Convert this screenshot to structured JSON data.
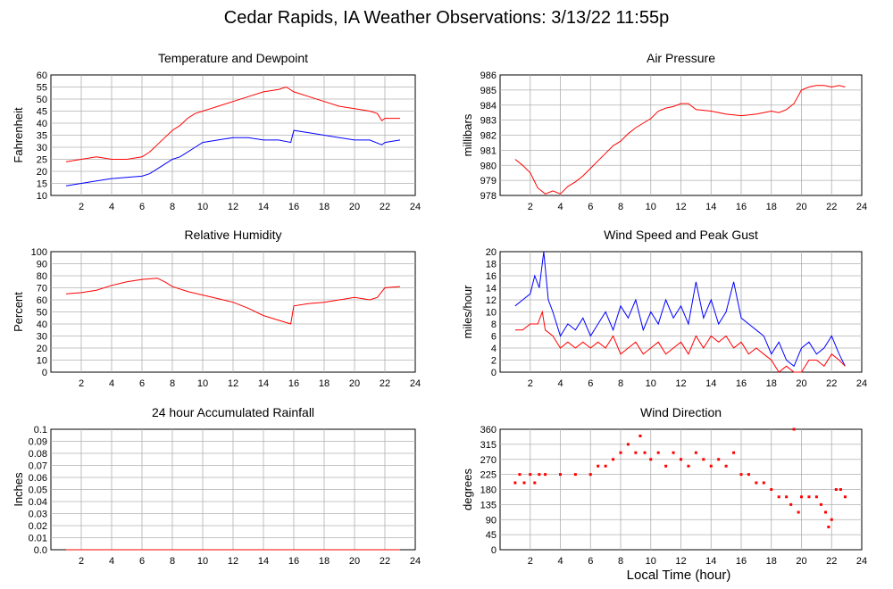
{
  "title": "Cedar Rapids, IA Weather Observations: 3/13/22 11:55p",
  "x_axis_label": "Local Time (hour)",
  "chart_data": [
    {
      "id": "temp",
      "type": "line",
      "title": "Temperature and Dewpoint",
      "ylabel": "Fahrenheit",
      "xlim": [
        0,
        24
      ],
      "ylim": [
        10,
        60
      ],
      "xticks": [
        2,
        4,
        6,
        8,
        10,
        12,
        14,
        16,
        18,
        20,
        22,
        24
      ],
      "yticks": [
        10,
        15,
        20,
        25,
        30,
        35,
        40,
        45,
        50,
        55,
        60
      ],
      "grid": true,
      "series": [
        {
          "color": "#ff0000",
          "x": [
            1,
            2,
            3,
            4,
            5,
            6,
            6.5,
            7,
            7.5,
            8,
            8.5,
            9,
            9.5,
            10,
            10.5,
            11,
            12,
            13,
            14,
            15,
            15.5,
            16,
            17,
            18,
            19,
            20,
            21,
            21.5,
            21.8,
            22,
            22.5,
            23
          ],
          "y": [
            24,
            25,
            26,
            25,
            25,
            26,
            28,
            31,
            34,
            37,
            39,
            42,
            44,
            45,
            46,
            47,
            49,
            51,
            53,
            54,
            55,
            53,
            51,
            49,
            47,
            46,
            45,
            44,
            41,
            42,
            42,
            42
          ]
        },
        {
          "color": "#0000ff",
          "x": [
            1,
            2,
            3,
            4,
            5,
            6,
            6.5,
            7,
            7.5,
            8,
            8.5,
            9,
            9.5,
            10,
            11,
            12,
            13,
            14,
            15,
            15.8,
            16,
            17,
            18,
            19,
            20,
            21,
            21.8,
            22,
            23
          ],
          "y": [
            14,
            15,
            16,
            17,
            17.5,
            18,
            19,
            21,
            23,
            25,
            26,
            28,
            30,
            32,
            33,
            34,
            34,
            33,
            33,
            32,
            37,
            36,
            35,
            34,
            33,
            33,
            31,
            32,
            33
          ]
        }
      ]
    },
    {
      "id": "press",
      "type": "line",
      "title": "Air Pressure",
      "ylabel": "millibars",
      "xlim": [
        0,
        24
      ],
      "ylim": [
        978,
        986
      ],
      "xticks": [
        2,
        4,
        6,
        8,
        10,
        12,
        14,
        16,
        18,
        20,
        22,
        24
      ],
      "yticks": [
        978,
        979,
        980,
        981,
        982,
        983,
        984,
        985,
        986
      ],
      "grid": true,
      "series": [
        {
          "color": "#ff0000",
          "x": [
            1,
            1.5,
            2,
            2.5,
            3,
            3.5,
            4,
            4.5,
            5,
            5.5,
            6,
            6.5,
            7,
            7.5,
            8,
            8.5,
            9,
            9.5,
            10,
            10.5,
            11,
            11.5,
            12,
            12.5,
            13,
            14,
            15,
            16,
            17,
            18,
            18.5,
            19,
            19.5,
            20,
            20.5,
            21,
            21.5,
            22,
            22.5,
            22.9
          ],
          "y": [
            980.4,
            980,
            979.5,
            978.5,
            978.1,
            978.3,
            978.1,
            978.6,
            978.9,
            979.3,
            979.8,
            980.3,
            980.8,
            981.3,
            981.6,
            982.1,
            982.5,
            982.8,
            983.1,
            983.6,
            983.8,
            983.9,
            984.1,
            984.1,
            983.7,
            983.6,
            983.4,
            983.3,
            983.4,
            983.6,
            983.5,
            983.7,
            984.1,
            985,
            985.2,
            985.3,
            985.3,
            985.2,
            985.3,
            985.2
          ]
        }
      ]
    },
    {
      "id": "rh",
      "type": "line",
      "title": "Relative Humidity",
      "ylabel": "Percent",
      "xlim": [
        0,
        24
      ],
      "ylim": [
        0,
        100
      ],
      "xticks": [
        2,
        4,
        6,
        8,
        10,
        12,
        14,
        16,
        18,
        20,
        22,
        24
      ],
      "yticks": [
        0,
        10,
        20,
        30,
        40,
        50,
        60,
        70,
        80,
        90,
        100
      ],
      "grid": true,
      "series": [
        {
          "color": "#ff0000",
          "x": [
            1,
            2,
            3,
            4,
            5,
            6,
            7,
            7.5,
            8,
            9,
            10,
            11,
            12,
            13,
            14,
            15,
            15.8,
            16,
            17,
            18,
            19,
            20,
            21,
            21.5,
            22,
            23
          ],
          "y": [
            65,
            66,
            68,
            72,
            75,
            77,
            78,
            75,
            71,
            67,
            64,
            61,
            58,
            53,
            47,
            43,
            40,
            55,
            57,
            58,
            60,
            62,
            60,
            62,
            70,
            71
          ]
        }
      ]
    },
    {
      "id": "wind",
      "type": "line",
      "title": "Wind Speed and Peak Gust",
      "ylabel": "miles/hour",
      "xlim": [
        0,
        24
      ],
      "ylim": [
        0,
        20
      ],
      "xticks": [
        2,
        4,
        6,
        8,
        10,
        12,
        14,
        16,
        18,
        20,
        22,
        24
      ],
      "yticks": [
        0,
        2,
        4,
        6,
        8,
        10,
        12,
        14,
        16,
        18,
        20
      ],
      "grid": true,
      "series": [
        {
          "color": "#0000ff",
          "x": [
            1,
            1.5,
            2,
            2.3,
            2.6,
            2.9,
            3.2,
            3.5,
            4,
            4.5,
            5,
            5.5,
            6,
            6.5,
            7,
            7.5,
            8,
            8.5,
            9,
            9.5,
            10,
            10.5,
            11,
            11.5,
            12,
            12.5,
            13,
            13.5,
            14,
            14.5,
            15,
            15.5,
            16,
            16.5,
            17,
            17.5,
            18,
            18.5,
            19,
            19.5,
            20,
            20.5,
            21,
            21.5,
            22,
            22.5,
            22.9
          ],
          "y": [
            11,
            12,
            13,
            16,
            14,
            20,
            12,
            10,
            6,
            8,
            7,
            9,
            6,
            8,
            10,
            7,
            11,
            9,
            12,
            7,
            10,
            8,
            12,
            9,
            11,
            8,
            15,
            9,
            12,
            8,
            10,
            15,
            9,
            8,
            7,
            6,
            3,
            5,
            2,
            1,
            4,
            5,
            3,
            4,
            6,
            3,
            1
          ]
        },
        {
          "color": "#ff0000",
          "x": [
            1,
            1.5,
            2,
            2.5,
            2.8,
            3,
            3.5,
            4,
            4.5,
            5,
            5.5,
            6,
            6.5,
            7,
            7.5,
            8,
            8.5,
            9,
            9.5,
            10,
            10.5,
            11,
            11.5,
            12,
            12.5,
            13,
            13.5,
            14,
            14.5,
            15,
            15.5,
            16,
            16.5,
            17,
            17.5,
            18,
            18.5,
            19,
            19.5,
            20,
            20.5,
            21,
            21.5,
            22,
            22.5,
            22.9
          ],
          "y": [
            7,
            7,
            8,
            8,
            10,
            7,
            6,
            4,
            5,
            4,
            5,
            4,
            5,
            4,
            6,
            3,
            4,
            5,
            3,
            4,
            5,
            3,
            4,
            5,
            3,
            6,
            4,
            6,
            5,
            6,
            4,
            5,
            3,
            4,
            3,
            2,
            0,
            1,
            0,
            0,
            2,
            2,
            1,
            3,
            2,
            1
          ]
        }
      ]
    },
    {
      "id": "rain",
      "type": "line",
      "title": "24 hour Accumulated Rainfall",
      "ylabel": "Inches",
      "xlim": [
        0,
        24
      ],
      "ylim": [
        0,
        0.1
      ],
      "xticks": [
        2,
        4,
        6,
        8,
        10,
        12,
        14,
        16,
        18,
        20,
        22,
        24
      ],
      "yticks": [
        0,
        0.01,
        0.02,
        0.03,
        0.04,
        0.05,
        0.06,
        0.07,
        0.08,
        0.09,
        0.1
      ],
      "ytick_labels": [
        "0.0",
        "0.01",
        "0.02",
        "0.03",
        "0.04",
        "0.05",
        "0.06",
        "0.07",
        "0.08",
        "0.09",
        "0.1"
      ],
      "grid": true,
      "series": [
        {
          "color": "#ff0000",
          "x": [
            1,
            23
          ],
          "y": [
            0,
            0
          ]
        }
      ]
    },
    {
      "id": "wdir",
      "type": "scatter",
      "title": "Wind Direction",
      "ylabel": "degrees",
      "xlim": [
        0,
        24
      ],
      "ylim": [
        0,
        360
      ],
      "xticks": [
        2,
        4,
        6,
        8,
        10,
        12,
        14,
        16,
        18,
        20,
        22,
        24
      ],
      "yticks": [
        0,
        45,
        90,
        135,
        180,
        225,
        270,
        315,
        360
      ],
      "grid": true,
      "series": [
        {
          "color": "#ff0000",
          "x": [
            1,
            1.3,
            1.6,
            2,
            2.3,
            2.6,
            3,
            4,
            5,
            6,
            6.5,
            7,
            7.5,
            8,
            8.5,
            9,
            9.3,
            9.6,
            10,
            10.5,
            11,
            11.5,
            12,
            12.5,
            13,
            13.5,
            14,
            14.5,
            15,
            15.5,
            16,
            16.5,
            17,
            17.5,
            18,
            18.5,
            19,
            19.3,
            19.5,
            19.8,
            20,
            20.5,
            21,
            21.3,
            21.6,
            21.8,
            22,
            22.3,
            22.6,
            22.9
          ],
          "y": [
            200,
            225,
            200,
            225,
            200,
            225,
            225,
            225,
            225,
            225,
            250,
            250,
            270,
            290,
            315,
            290,
            340,
            290,
            270,
            290,
            250,
            290,
            270,
            250,
            290,
            270,
            250,
            270,
            250,
            290,
            225,
            225,
            200,
            200,
            180,
            158,
            158,
            135,
            360,
            112,
            158,
            158,
            158,
            135,
            112,
            68,
            90,
            180,
            180,
            158
          ]
        }
      ]
    }
  ]
}
